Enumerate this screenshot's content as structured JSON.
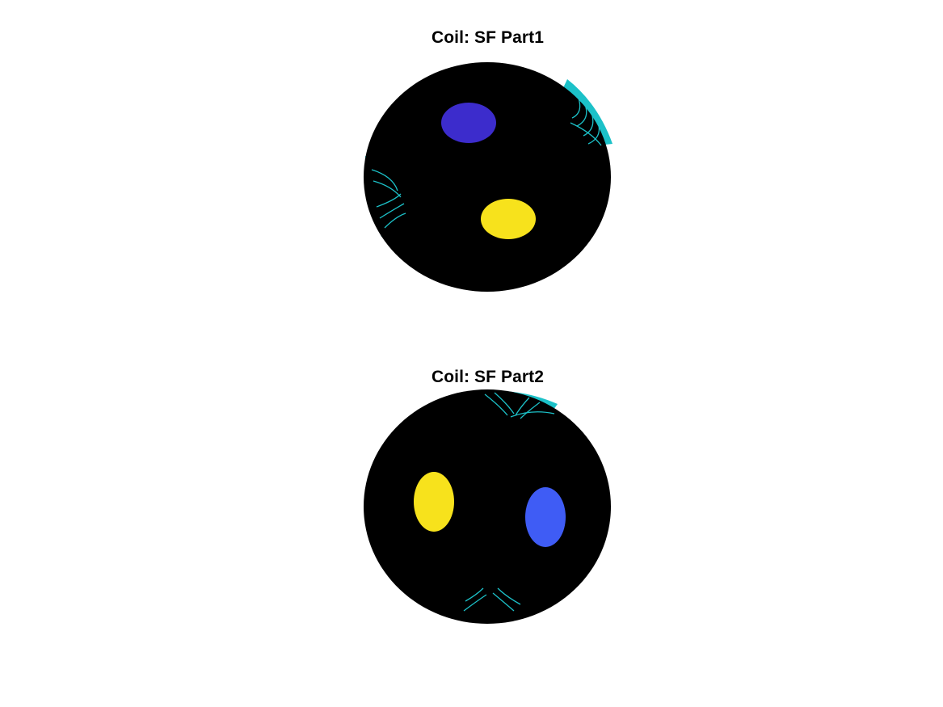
{
  "figure": {
    "colors": {
      "background": "#ffffff",
      "sphere": "#000000",
      "rim": "#1cc1c8",
      "positive_lobe": "#f7e21c",
      "negative_lobe_1": "#3c2ccc",
      "negative_lobe_2": "#3f5cf5"
    },
    "plots": [
      {
        "title": "Coil: SF Part1"
      },
      {
        "title": "Coil: SF Part2"
      }
    ]
  }
}
